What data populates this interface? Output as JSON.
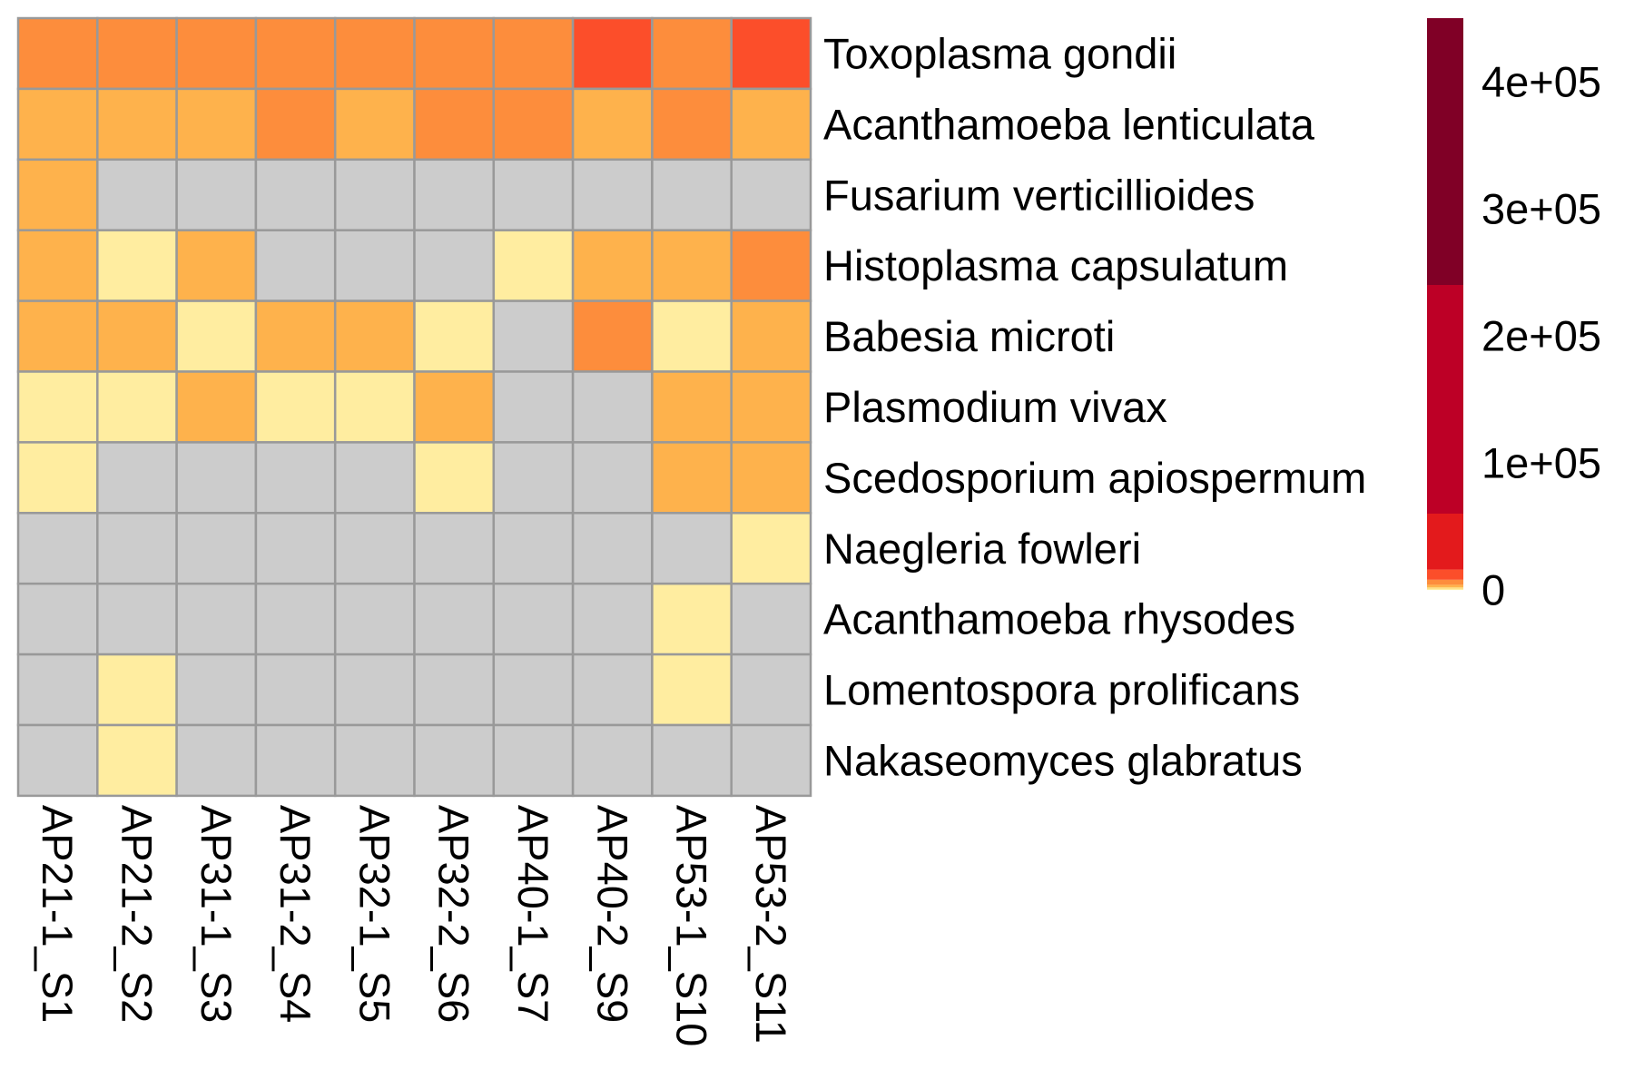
{
  "chart_data": {
    "type": "heatmap",
    "title": "",
    "xlabel": "",
    "ylabel": "",
    "columns": [
      "AP21-1_S1",
      "AP21-2_S2",
      "AP31-1_S3",
      "AP31-2_S4",
      "AP32-1_S5",
      "AP32-2_S6",
      "AP40-1_S7",
      "AP40-2_S9",
      "AP53-1_S10",
      "AP53-2_S11"
    ],
    "rows": [
      "Toxoplasma gondii",
      "Acanthamoeba lenticulata",
      "Fusarium verticillioides",
      "Histoplasma capsulatum",
      "Babesia microti",
      "Plasmodium vivax",
      "Scedosporium apiospermum",
      "Naegleria fowleri",
      "Acanthamoeba rhysodes",
      "Lomentospora prolificans",
      "Nakaseomyces glabratus"
    ],
    "values": [
      [
        5000,
        5500,
        5200,
        5300,
        5200,
        5300,
        5400,
        9000,
        5600,
        10000
      ],
      [
        2500,
        2600,
        2700,
        5200,
        3000,
        5000,
        5300,
        2700,
        5300,
        2300
      ],
      [
        2500,
        null,
        null,
        null,
        null,
        null,
        null,
        null,
        null,
        null
      ],
      [
        2700,
        800,
        3500,
        null,
        null,
        null,
        800,
        3200,
        2600,
        6000
      ],
      [
        2800,
        2800,
        900,
        2700,
        2700,
        800,
        null,
        6000,
        800,
        2400
      ],
      [
        700,
        700,
        3000,
        800,
        700,
        3200,
        null,
        null,
        2500,
        2500
      ],
      [
        700,
        null,
        null,
        null,
        null,
        700,
        null,
        null,
        2700,
        2600
      ],
      [
        null,
        null,
        null,
        null,
        null,
        null,
        null,
        null,
        null,
        700
      ],
      [
        null,
        null,
        null,
        null,
        null,
        null,
        null,
        null,
        700,
        null
      ],
      [
        null,
        700,
        null,
        null,
        null,
        null,
        null,
        null,
        700,
        null
      ],
      [
        null,
        700,
        null,
        null,
        null,
        null,
        null,
        null,
        null,
        null
      ]
    ],
    "missing_color": "#cccccc",
    "cell_border_color": "#999999",
    "color_scale": {
      "breaks": [
        0,
        1000,
        2000,
        4000,
        8000,
        16000,
        30000,
        60000,
        120000,
        240000,
        450000
      ],
      "colors": [
        "#ffeda0",
        "#fed976",
        "#feb24c",
        "#fd8d3c",
        "#fc4e2a",
        "#e31a1c",
        "#e31a1c",
        "#bd0026",
        "#bd0026",
        "#800026"
      ],
      "legend_range": [
        0,
        450000
      ],
      "legend_ticks": [
        {
          "value": 0,
          "label": "0"
        },
        {
          "value": 100000,
          "label": "1e+05"
        },
        {
          "value": 200000,
          "label": "2e+05"
        },
        {
          "value": 300000,
          "label": "3e+05"
        },
        {
          "value": 400000,
          "label": "4e+05"
        }
      ]
    },
    "legend_position": "right"
  }
}
